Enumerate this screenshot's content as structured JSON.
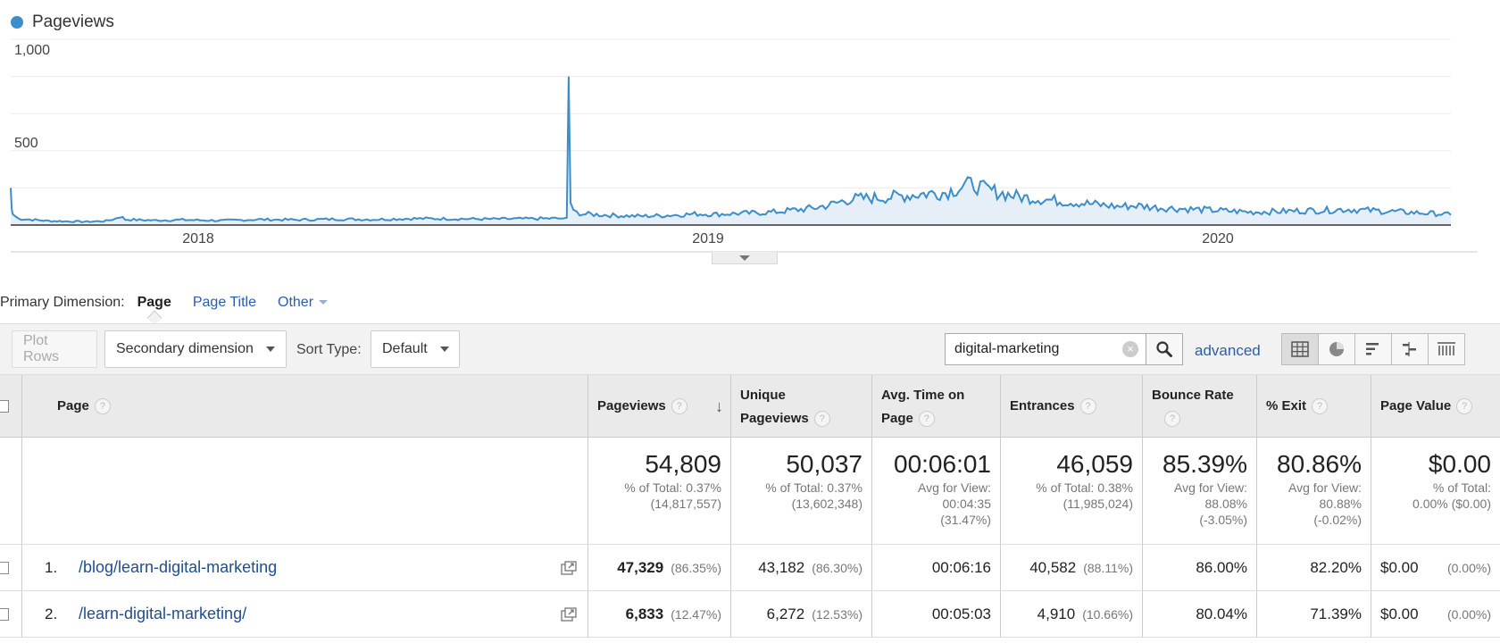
{
  "chart": {
    "legend": "Pageviews",
    "legend_color": "#3b8ec9",
    "y_ticks": [
      "1,000",
      "500"
    ],
    "x_ticks": [
      "2018",
      "2019",
      "2020"
    ]
  },
  "chart_data": {
    "type": "area",
    "title": "",
    "series": [
      {
        "name": "Pageviews"
      }
    ],
    "ylim": [
      0,
      1000
    ],
    "x_range": [
      "2017-09",
      "2020-05"
    ],
    "x_ticks": [
      "2018",
      "2019",
      "2020"
    ],
    "y_ticks": [
      500,
      1000
    ],
    "grid": true,
    "legend": "top-left",
    "points": [
      [
        0,
        200
      ],
      [
        1,
        90
      ],
      [
        2,
        60
      ],
      [
        4,
        50
      ],
      [
        8,
        35
      ],
      [
        20,
        30
      ],
      [
        40,
        22
      ],
      [
        60,
        20
      ],
      [
        80,
        18
      ],
      [
        100,
        22
      ],
      [
        110,
        35
      ],
      [
        115,
        48
      ],
      [
        120,
        30
      ],
      [
        150,
        25
      ],
      [
        180,
        28
      ],
      [
        220,
        24
      ],
      [
        260,
        30
      ],
      [
        300,
        28
      ],
      [
        340,
        32
      ],
      [
        380,
        30
      ],
      [
        420,
        35
      ],
      [
        460,
        34
      ],
      [
        500,
        32
      ],
      [
        540,
        34
      ],
      [
        580,
        36
      ],
      [
        583,
        40
      ],
      [
        585,
        800
      ],
      [
        587,
        120
      ],
      [
        590,
        70
      ],
      [
        600,
        60
      ],
      [
        620,
        55
      ],
      [
        640,
        50
      ],
      [
        660,
        48
      ],
      [
        680,
        50
      ],
      [
        700,
        55
      ],
      [
        720,
        60
      ],
      [
        740,
        58
      ],
      [
        760,
        62
      ],
      [
        780,
        65
      ],
      [
        800,
        70
      ],
      [
        820,
        80
      ],
      [
        840,
        90
      ],
      [
        860,
        110
      ],
      [
        880,
        140
      ],
      [
        900,
        145
      ],
      [
        920,
        150
      ],
      [
        940,
        160
      ],
      [
        960,
        170
      ],
      [
        980,
        175
      ],
      [
        1000,
        210
      ],
      [
        1010,
        220
      ],
      [
        1020,
        195
      ],
      [
        1040,
        170
      ],
      [
        1060,
        150
      ],
      [
        1080,
        140
      ],
      [
        1100,
        130
      ],
      [
        1120,
        120
      ],
      [
        1140,
        110
      ],
      [
        1160,
        100
      ],
      [
        1180,
        105
      ],
      [
        1200,
        95
      ],
      [
        1220,
        90
      ],
      [
        1240,
        85
      ],
      [
        1260,
        80
      ],
      [
        1280,
        75
      ],
      [
        1300,
        70
      ],
      [
        1320,
        72
      ],
      [
        1340,
        75
      ],
      [
        1360,
        78
      ],
      [
        1380,
        80
      ],
      [
        1400,
        85
      ],
      [
        1420,
        80
      ],
      [
        1440,
        75
      ],
      [
        1460,
        70
      ],
      [
        1480,
        65
      ],
      [
        1500,
        60
      ],
      [
        1510,
        55
      ]
    ]
  },
  "primary_dimension": {
    "label": "Primary Dimension:",
    "active": "Page",
    "links": [
      "Page Title",
      "Other"
    ]
  },
  "toolbar": {
    "plot_rows": "Plot Rows",
    "secondary_dimension": "Secondary dimension",
    "sort_type_label": "Sort Type:",
    "sort_type_value": "Default",
    "search_value": "digital-marketing",
    "advanced": "advanced"
  },
  "table": {
    "headers": {
      "page": "Page",
      "pageviews": "Pageviews",
      "unique_pageviews_1": "Unique",
      "unique_pageviews_2": "Pageviews",
      "avg_time_1": "Avg. Time on",
      "avg_time_2": "Page",
      "entrances": "Entrances",
      "bounce_rate": "Bounce Rate",
      "exit": "% Exit",
      "page_value": "Page Value"
    },
    "totals": {
      "pageviews": {
        "big": "54,809",
        "sub1": "% of Total: 0.37%",
        "sub2": "(14,817,557)"
      },
      "unique": {
        "big": "50,037",
        "sub1": "% of Total: 0.37%",
        "sub2": "(13,602,348)"
      },
      "avg_time": {
        "big": "00:06:01",
        "sub1": "Avg for View:",
        "sub2": "00:04:35",
        "sub3": "(31.47%)"
      },
      "entrances": {
        "big": "46,059",
        "sub1": "% of Total: 0.38%",
        "sub2": "(11,985,024)"
      },
      "bounce": {
        "big": "85.39%",
        "sub1": "Avg for View:",
        "sub2": "88.08%",
        "sub3": "(-3.05%)"
      },
      "exit": {
        "big": "80.86%",
        "sub1": "Avg for View:",
        "sub2": "80.88%",
        "sub3": "(-0.02%)"
      },
      "value": {
        "big": "$0.00",
        "sub1": "% of Total:",
        "sub2": "0.00% ($0.00)"
      }
    },
    "rows": [
      {
        "index": "1.",
        "page": "/blog/learn-digital-marketing",
        "pageviews": "47,329",
        "pageviews_pct": "(86.35%)",
        "unique": "43,182",
        "unique_pct": "(86.30%)",
        "avg_time": "00:06:16",
        "entrances": "40,582",
        "entrances_pct": "(88.11%)",
        "bounce": "86.00%",
        "exit": "82.20%",
        "value": "$0.00",
        "value_pct": "(0.00%)"
      },
      {
        "index": "2.",
        "page": "/learn-digital-marketing/",
        "pageviews": "6,833",
        "pageviews_pct": "(12.47%)",
        "unique": "6,272",
        "unique_pct": "(12.53%)",
        "avg_time": "00:05:03",
        "entrances": "4,910",
        "entrances_pct": "(10.66%)",
        "bounce": "80.04%",
        "exit": "71.39%",
        "value": "$0.00",
        "value_pct": "(0.00%)"
      }
    ]
  }
}
